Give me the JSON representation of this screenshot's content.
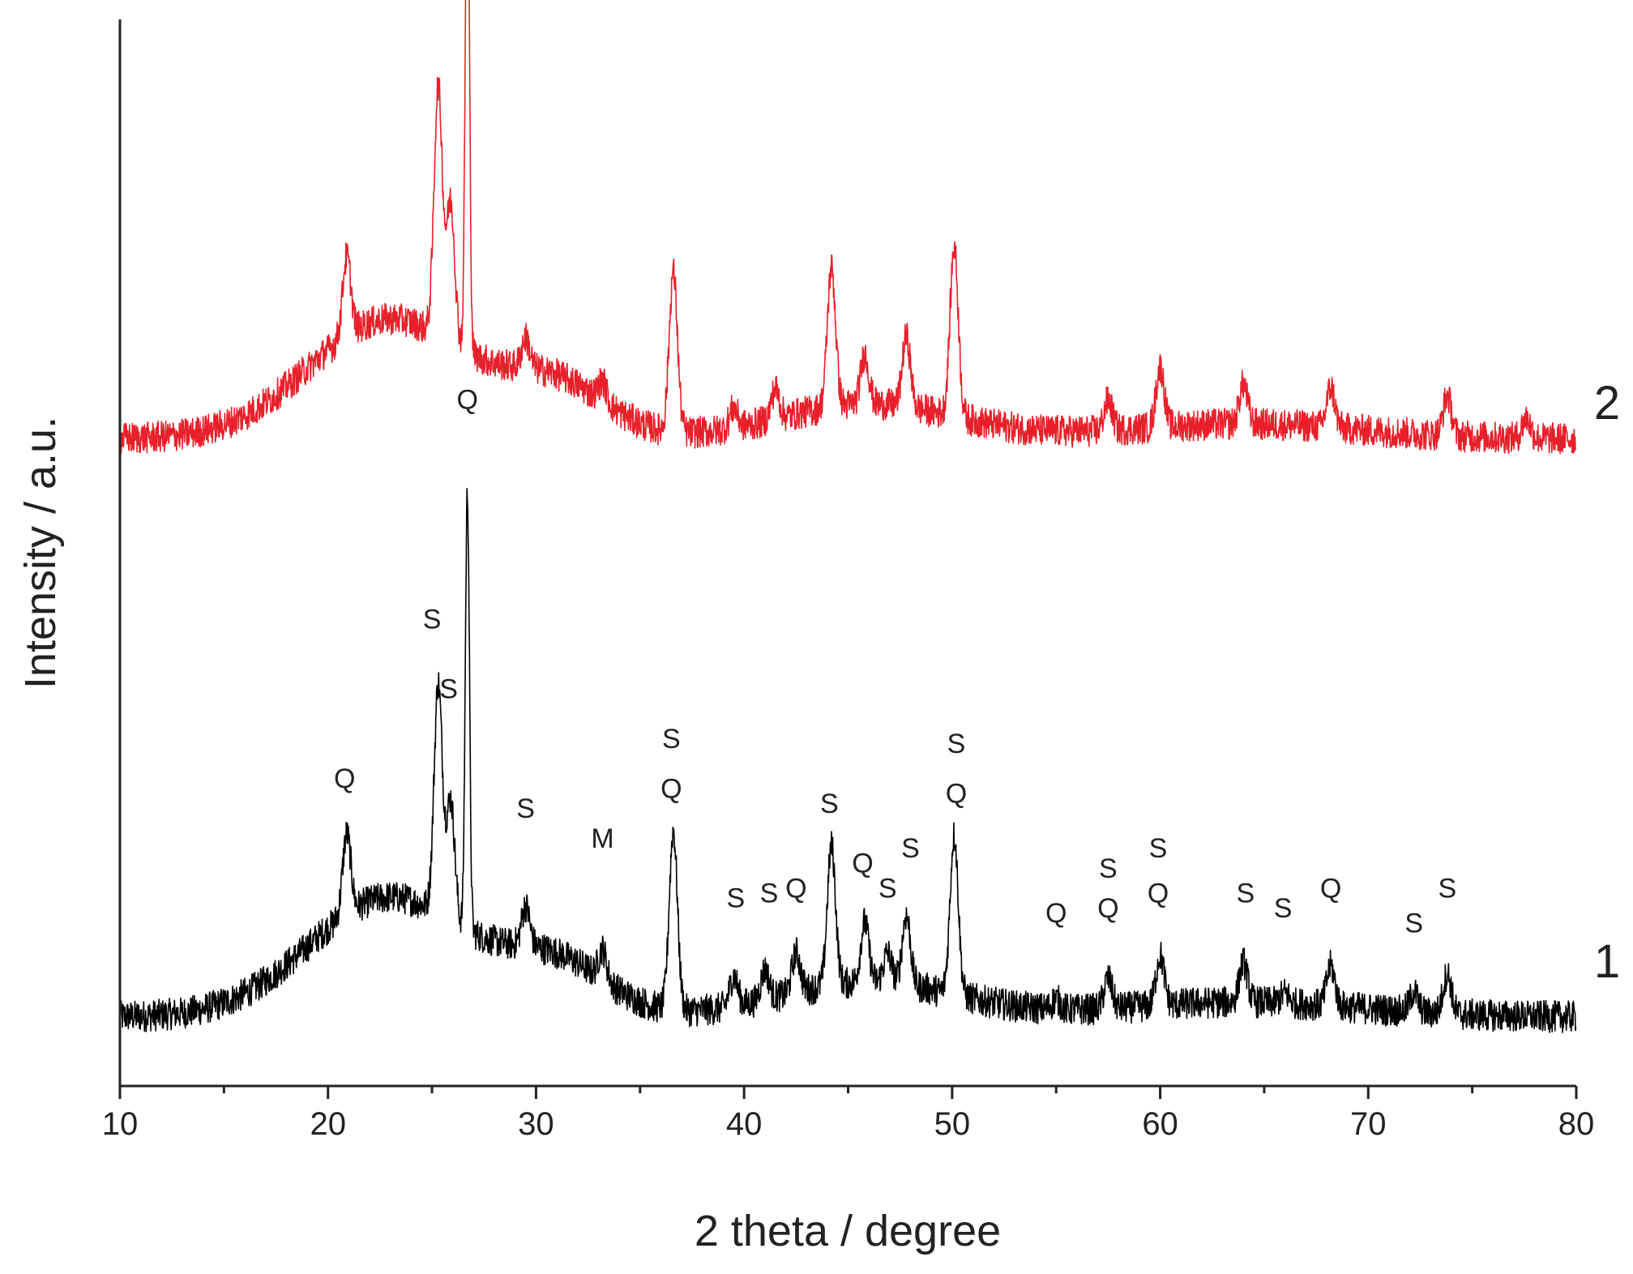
{
  "chart_data": {
    "type": "line",
    "title": "",
    "xlabel": "2 theta / degree",
    "ylabel": "Intensity / a.u.",
    "xlim": [
      10,
      80
    ],
    "xticks": [
      10,
      20,
      30,
      40,
      50,
      60,
      70,
      80
    ],
    "x_minor_step": 5,
    "y_ticks_shown": false,
    "grid": false,
    "legend": "none",
    "series": [
      {
        "name": "1",
        "color": "#000000",
        "baseline": 0,
        "peaks": [
          {
            "x": 20.9,
            "h": 8
          },
          {
            "x": 25.3,
            "h": 23
          },
          {
            "x": 25.9,
            "h": 12
          },
          {
            "x": 26.7,
            "h": 44
          },
          {
            "x": 29.5,
            "h": 4
          },
          {
            "x": 33.2,
            "h": 3
          },
          {
            "x": 36.6,
            "h": 18
          },
          {
            "x": 39.5,
            "h": 3
          },
          {
            "x": 41.0,
            "h": 3
          },
          {
            "x": 42.5,
            "h": 4
          },
          {
            "x": 44.2,
            "h": 14
          },
          {
            "x": 45.8,
            "h": 6
          },
          {
            "x": 46.9,
            "h": 3
          },
          {
            "x": 47.8,
            "h": 7
          },
          {
            "x": 50.1,
            "h": 16
          },
          {
            "x": 55.0,
            "h": 1
          },
          {
            "x": 57.5,
            "h": 3
          },
          {
            "x": 60.0,
            "h": 5
          },
          {
            "x": 64.0,
            "h": 4
          },
          {
            "x": 66.0,
            "h": 1
          },
          {
            "x": 68.2,
            "h": 4
          },
          {
            "x": 72.2,
            "h": 2
          },
          {
            "x": 73.8,
            "h": 4
          }
        ]
      },
      {
        "name": "2",
        "color": "#e8202a",
        "baseline": 58,
        "peaks": [
          {
            "x": 20.9,
            "h": 8
          },
          {
            "x": 25.3,
            "h": 25
          },
          {
            "x": 25.9,
            "h": 14
          },
          {
            "x": 26.7,
            "h": 52
          },
          {
            "x": 29.5,
            "h": 3
          },
          {
            "x": 33.2,
            "h": 2
          },
          {
            "x": 36.6,
            "h": 16
          },
          {
            "x": 39.5,
            "h": 2
          },
          {
            "x": 41.5,
            "h": 3
          },
          {
            "x": 44.2,
            "h": 14
          },
          {
            "x": 45.8,
            "h": 5
          },
          {
            "x": 47.8,
            "h": 7
          },
          {
            "x": 50.1,
            "h": 17
          },
          {
            "x": 57.5,
            "h": 3
          },
          {
            "x": 60.0,
            "h": 6
          },
          {
            "x": 64.0,
            "h": 4
          },
          {
            "x": 68.2,
            "h": 4
          },
          {
            "x": 73.8,
            "h": 4
          },
          {
            "x": 77.6,
            "h": 2
          }
        ]
      }
    ],
    "annotations": [
      {
        "text": "Q",
        "x": 26.7,
        "y": 61
      },
      {
        "text": "S",
        "x": 25.0,
        "y": 39
      },
      {
        "text": "S",
        "x": 25.8,
        "y": 32
      },
      {
        "text": "Q",
        "x": 20.8,
        "y": 23
      },
      {
        "text": "S",
        "x": 29.5,
        "y": 20
      },
      {
        "text": "M",
        "x": 33.2,
        "y": 17
      },
      {
        "text": "S",
        "x": 36.5,
        "y": 27
      },
      {
        "text": "Q",
        "x": 36.5,
        "y": 22
      },
      {
        "text": "S",
        "x": 39.6,
        "y": 11
      },
      {
        "text": "S",
        "x": 41.2,
        "y": 11.5
      },
      {
        "text": "Q",
        "x": 42.5,
        "y": 12
      },
      {
        "text": "S",
        "x": 44.1,
        "y": 20.5
      },
      {
        "text": "Q",
        "x": 45.7,
        "y": 14.5
      },
      {
        "text": "S",
        "x": 46.9,
        "y": 12
      },
      {
        "text": "S",
        "x": 48.0,
        "y": 16
      },
      {
        "text": "S",
        "x": 50.2,
        "y": 26.5
      },
      {
        "text": "Q",
        "x": 50.2,
        "y": 21.5
      },
      {
        "text": "Q",
        "x": 55.0,
        "y": 9.5
      },
      {
        "text": "S",
        "x": 57.5,
        "y": 14
      },
      {
        "text": "Q",
        "x": 57.5,
        "y": 10
      },
      {
        "text": "S",
        "x": 59.9,
        "y": 16
      },
      {
        "text": "Q",
        "x": 59.9,
        "y": 11.5
      },
      {
        "text": "S",
        "x": 64.1,
        "y": 11.5
      },
      {
        "text": "S",
        "x": 65.9,
        "y": 10
      },
      {
        "text": "Q",
        "x": 68.2,
        "y": 12
      },
      {
        "text": "S",
        "x": 72.2,
        "y": 8.5
      },
      {
        "text": "S",
        "x": 73.8,
        "y": 12
      }
    ],
    "series_labels": [
      {
        "text": "1",
        "y": 4
      },
      {
        "text": "2",
        "y": 60
      }
    ]
  }
}
